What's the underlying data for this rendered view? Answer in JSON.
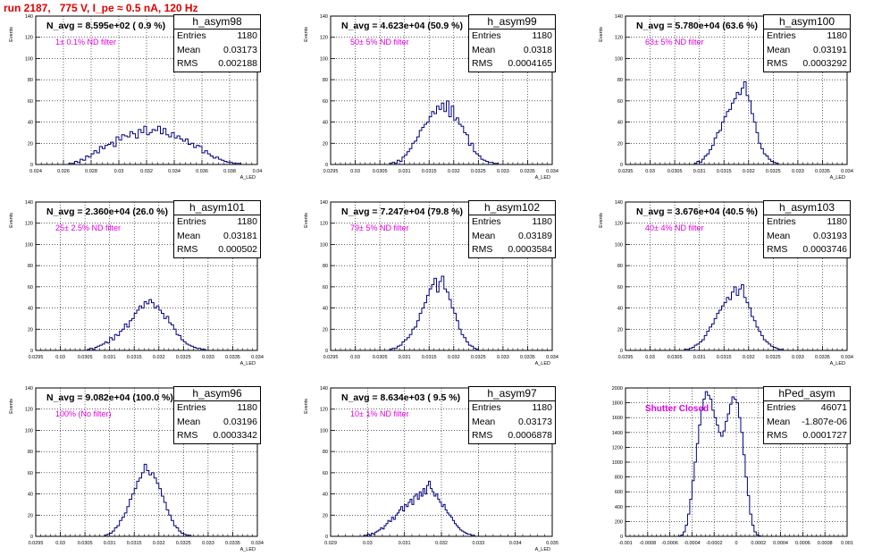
{
  "page": {
    "title": "run 2187,   775 V, I_pe ≈ 0.5 nA, 120 Hz"
  },
  "labels": {
    "entries": "Entries",
    "mean": "Mean",
    "rms": "RMS"
  },
  "chart_data": [
    {
      "type": "bar",
      "id": "h_asym98",
      "title": "h_asym98",
      "navg": "N_avg = 8.595e+02 ( 0.9 %)",
      "annotation": "1± 0.1% ND filter",
      "stats": {
        "entries": "1180",
        "mean": "0.03173",
        "rms": "0.002188"
      },
      "xlabel": "A_LED",
      "ylabel": "Events",
      "xlim": [
        0.024,
        0.04
      ],
      "ylim": [
        0,
        140
      ],
      "xticks": [
        0.024,
        0.026,
        0.028,
        0.03,
        0.032,
        0.034,
        0.036,
        0.038,
        0.04
      ],
      "xtick_labels": [
        "0.024",
        "0.026",
        "0.028",
        "0.03",
        "0.032",
        "0.034",
        "0.036",
        "0.038",
        "0.04"
      ],
      "yticks": [
        0,
        20,
        40,
        60,
        80,
        100,
        120,
        140
      ],
      "ytick_labels": [
        "0",
        "20",
        "40",
        "60",
        "80",
        "100",
        "120",
        "140"
      ],
      "bin_width": 0.0002,
      "bins": {
        "start": 0.0264,
        "counts": [
          1,
          1,
          3,
          2,
          5,
          4,
          8,
          7,
          10,
          13,
          11,
          17,
          15,
          18,
          19,
          21,
          17,
          26,
          23,
          28,
          27,
          26,
          31,
          29,
          25,
          33,
          30,
          36,
          28,
          30,
          33,
          32,
          36,
          29,
          34,
          28,
          26,
          30,
          25,
          27,
          24,
          22,
          24,
          19,
          20,
          16,
          18,
          17,
          11,
          13,
          10,
          8,
          6,
          7,
          5,
          4,
          3,
          2,
          2,
          1,
          1,
          1
        ]
      },
      "grid": true,
      "legend": "top-right"
    },
    {
      "type": "bar",
      "id": "h_asym99",
      "title": "h_asym99",
      "navg": "N_avg = 4.623e+04 (50.9 %)",
      "annotation": "50± 5% ND filter",
      "stats": {
        "entries": "1180",
        "mean": "0.0318",
        "rms": "0.0004165"
      },
      "xlabel": "A_LED",
      "ylabel": "Events",
      "xlim": [
        0.0295,
        0.034
      ],
      "ylim": [
        0,
        140
      ],
      "xticks": [
        0.0295,
        0.03,
        0.0305,
        0.031,
        0.0315,
        0.032,
        0.0325,
        0.033,
        0.0335,
        0.034
      ],
      "xtick_labels": [
        "0.0295",
        "0.03",
        "0.0305",
        "0.031",
        "0.0315",
        "0.032",
        "0.0325",
        "0.033",
        "0.0335",
        "0.034"
      ],
      "yticks": [
        0,
        20,
        40,
        60,
        80,
        100,
        120,
        140
      ],
      "ytick_labels": [
        "0",
        "20",
        "40",
        "60",
        "80",
        "100",
        "120",
        "140"
      ],
      "bin_width": 5e-05,
      "bins": {
        "start": 0.0307,
        "counts": [
          1,
          2,
          1,
          4,
          3,
          7,
          9,
          12,
          15,
          20,
          22,
          26,
          32,
          35,
          38,
          40,
          45,
          50,
          48,
          55,
          52,
          58,
          50,
          60,
          45,
          55,
          42,
          44,
          38,
          36,
          30,
          28,
          18,
          20,
          12,
          10,
          8,
          5,
          4,
          3,
          2,
          2,
          1,
          1
        ]
      },
      "grid": true,
      "legend": "top-right"
    },
    {
      "type": "bar",
      "id": "h_asym100",
      "title": "h_asym100",
      "navg": "N_avg = 5.780e+04 (63.6 %)",
      "annotation": "63± 5% ND filter",
      "stats": {
        "entries": "1180",
        "mean": "0.03191",
        "rms": "0.0003292"
      },
      "xlabel": "A_LED",
      "ylabel": "Events",
      "xlim": [
        0.0295,
        0.034
      ],
      "ylim": [
        0,
        140
      ],
      "xticks": [
        0.0295,
        0.03,
        0.0305,
        0.031,
        0.0315,
        0.032,
        0.0325,
        0.033,
        0.0335,
        0.034
      ],
      "xtick_labels": [
        "0.0295",
        "0.03",
        "0.0305",
        "0.031",
        "0.0315",
        "0.032",
        "0.0325",
        "0.033",
        "0.0335",
        "0.034"
      ],
      "yticks": [
        0,
        20,
        40,
        60,
        80,
        100,
        120,
        140
      ],
      "ytick_labels": [
        "0",
        "20",
        "40",
        "60",
        "80",
        "100",
        "120",
        "140"
      ],
      "bin_width": 5e-05,
      "bins": {
        "start": 0.0309,
        "counts": [
          1,
          3,
          2,
          5,
          8,
          10,
          14,
          18,
          25,
          30,
          32,
          40,
          45,
          50,
          52,
          58,
          62,
          68,
          66,
          72,
          78,
          65,
          60,
          48,
          40,
          30,
          20,
          15,
          10,
          8,
          5,
          3,
          2,
          1
        ]
      },
      "grid": true,
      "legend": "top-right"
    },
    {
      "type": "bar",
      "id": "h_asym101",
      "title": "h_asym101",
      "navg": "N_avg = 2.360e+04 (26.0 %)",
      "annotation": "25± 2.5% ND filter",
      "stats": {
        "entries": "1180",
        "mean": "0.03181",
        "rms": "0.000502"
      },
      "xlabel": "A_LED",
      "ylabel": "Events",
      "xlim": [
        0.0295,
        0.034
      ],
      "ylim": [
        0,
        140
      ],
      "xticks": [
        0.0295,
        0.03,
        0.0305,
        0.031,
        0.0315,
        0.032,
        0.0325,
        0.033,
        0.0335,
        0.034
      ],
      "xtick_labels": [
        "0.0295",
        "0.03",
        "0.0305",
        "0.031",
        "0.0315",
        "0.032",
        "0.0325",
        "0.033",
        "0.0335",
        "0.034"
      ],
      "yticks": [
        0,
        20,
        40,
        60,
        80,
        100,
        120,
        140
      ],
      "ytick_labels": [
        "0",
        "20",
        "40",
        "60",
        "80",
        "100",
        "120",
        "140"
      ],
      "bin_width": 5e-05,
      "bins": {
        "start": 0.03055,
        "counts": [
          1,
          2,
          1,
          3,
          4,
          5,
          6,
          8,
          7,
          12,
          10,
          15,
          14,
          18,
          20,
          25,
          22,
          28,
          30,
          35,
          38,
          42,
          40,
          46,
          44,
          48,
          45,
          40,
          42,
          38,
          35,
          30,
          32,
          26,
          24,
          20,
          15,
          14,
          10,
          8,
          6,
          5,
          4,
          3,
          2,
          2,
          1,
          1
        ]
      },
      "grid": true,
      "legend": "top-right"
    },
    {
      "type": "bar",
      "id": "h_asym102",
      "title": "h_asym102",
      "navg": "N_avg = 7.247e+04 (79.8 %)",
      "annotation": "79± 5% ND filter",
      "stats": {
        "entries": "1180",
        "mean": "0.03189",
        "rms": "0.0003584"
      },
      "xlabel": "A_LED",
      "ylabel": "Events",
      "xlim": [
        0.0295,
        0.034
      ],
      "ylim": [
        0,
        140
      ],
      "xticks": [
        0.0295,
        0.03,
        0.0305,
        0.031,
        0.0315,
        0.032,
        0.0325,
        0.033,
        0.0335,
        0.034
      ],
      "xtick_labels": [
        "0.0295",
        "0.03",
        "0.0305",
        "0.031",
        "0.0315",
        "0.032",
        "0.0325",
        "0.033",
        "0.0335",
        "0.034"
      ],
      "yticks": [
        0,
        20,
        40,
        60,
        80,
        100,
        120,
        140
      ],
      "ytick_labels": [
        "0",
        "20",
        "40",
        "60",
        "80",
        "100",
        "120",
        "140"
      ],
      "bin_width": 5e-05,
      "bins": {
        "start": 0.0307,
        "counts": [
          1,
          2,
          2,
          4,
          5,
          8,
          10,
          12,
          15,
          20,
          22,
          28,
          35,
          40,
          45,
          52,
          58,
          62,
          68,
          55,
          65,
          70,
          58,
          55,
          48,
          40,
          35,
          28,
          20,
          15,
          12,
          8,
          5,
          4,
          2,
          1
        ]
      },
      "grid": true,
      "legend": "top-right"
    },
    {
      "type": "bar",
      "id": "h_asym103",
      "title": "h_asym103",
      "navg": "N_avg = 3.676e+04 (40.5 %)",
      "annotation": "40± 4% ND filter",
      "stats": {
        "entries": "1180",
        "mean": "0.03193",
        "rms": "0.0003746"
      },
      "xlabel": "A_LED",
      "ylabel": "Events",
      "xlim": [
        0.0295,
        0.034
      ],
      "ylim": [
        0,
        140
      ],
      "xticks": [
        0.0295,
        0.03,
        0.0305,
        0.031,
        0.0315,
        0.032,
        0.0325,
        0.033,
        0.0335,
        0.034
      ],
      "xtick_labels": [
        "0.0295",
        "0.03",
        "0.0305",
        "0.031",
        "0.0315",
        "0.032",
        "0.0325",
        "0.033",
        "0.0335",
        "0.034"
      ],
      "yticks": [
        0,
        20,
        40,
        60,
        80,
        100,
        120,
        140
      ],
      "ytick_labels": [
        "0",
        "20",
        "40",
        "60",
        "80",
        "100",
        "120",
        "140"
      ],
      "bin_width": 5e-05,
      "bins": {
        "start": 0.0307,
        "counts": [
          1,
          1,
          2,
          3,
          5,
          6,
          8,
          10,
          14,
          18,
          22,
          25,
          30,
          35,
          38,
          42,
          45,
          50,
          48,
          55,
          60,
          52,
          58,
          62,
          50,
          45,
          40,
          32,
          28,
          22,
          18,
          14,
          10,
          8,
          6,
          4,
          3,
          2,
          1,
          1
        ]
      },
      "grid": true,
      "legend": "top-right"
    },
    {
      "type": "bar",
      "id": "h_asym96",
      "title": "h_asym96",
      "navg": "N_avg = 9.082e+04 (100.0 %)",
      "annotation": "100% (No filter)",
      "stats": {
        "entries": "1180",
        "mean": "0.03196",
        "rms": "0.0003342"
      },
      "xlabel": "A_LED",
      "ylabel": "Events",
      "xlim": [
        0.0295,
        0.034
      ],
      "ylim": [
        0,
        140
      ],
      "xticks": [
        0.0295,
        0.03,
        0.0305,
        0.031,
        0.0315,
        0.032,
        0.0325,
        0.033,
        0.0335,
        0.034
      ],
      "xtick_labels": [
        "0.0295",
        "0.03",
        "0.0305",
        "0.031",
        "0.0315",
        "0.032",
        "0.0325",
        "0.033",
        "0.0335",
        "0.034"
      ],
      "yticks": [
        0,
        20,
        40,
        60,
        80,
        100,
        120,
        140
      ],
      "ytick_labels": [
        "0",
        "20",
        "40",
        "60",
        "80",
        "100",
        "120",
        "140"
      ],
      "bin_width": 5e-05,
      "bins": {
        "start": 0.0309,
        "counts": [
          1,
          2,
          3,
          5,
          8,
          10,
          15,
          18,
          22,
          28,
          35,
          40,
          45,
          52,
          55,
          60,
          68,
          62,
          58,
          60,
          55,
          50,
          45,
          38,
          32,
          25,
          20,
          15,
          10,
          8,
          5,
          3,
          2,
          1,
          1
        ]
      },
      "grid": true,
      "legend": "top-right"
    },
    {
      "type": "bar",
      "id": "h_asym97",
      "title": "h_asym97",
      "navg": "N_avg = 8.634e+03 ( 9.5 %)",
      "annotation": "10± 1% ND filter",
      "stats": {
        "entries": "1180",
        "mean": "0.03173",
        "rms": "0.0006878"
      },
      "xlabel": "A_LED",
      "ylabel": "Events",
      "xlim": [
        0.029,
        0.035
      ],
      "ylim": [
        0,
        140
      ],
      "xticks": [
        0.029,
        0.03,
        0.031,
        0.032,
        0.033,
        0.034,
        0.035
      ],
      "xtick_labels": [
        "0.029",
        "0.03",
        "0.031",
        "0.032",
        "0.033",
        "0.034",
        "0.035"
      ],
      "yticks": [
        0,
        20,
        40,
        60,
        80,
        100,
        120,
        140
      ],
      "ytick_labels": [
        "0",
        "20",
        "40",
        "60",
        "80",
        "100",
        "120",
        "140"
      ],
      "bin_width": 5e-05,
      "bins": {
        "start": 0.0299,
        "counts": [
          1,
          1,
          2,
          1,
          3,
          2,
          4,
          5,
          6,
          8,
          7,
          10,
          12,
          15,
          14,
          18,
          16,
          20,
          22,
          25,
          28,
          24,
          30,
          28,
          32,
          35,
          30,
          38,
          40,
          35,
          42,
          38,
          45,
          40,
          48,
          52,
          45,
          42,
          38,
          40,
          35,
          32,
          28,
          30,
          25,
          22,
          20,
          18,
          15,
          12,
          10,
          8,
          6,
          5,
          4,
          3,
          2,
          2,
          1,
          1
        ]
      },
      "grid": true,
      "legend": "top-right"
    },
    {
      "type": "bar",
      "id": "hPed_asym",
      "title": "hPed_asym",
      "navg": "",
      "annotation": "Shutter Closed",
      "stats": {
        "entries": "46071",
        "mean": "-1.807e-06",
        "rms": "0.0001727"
      },
      "xlabel": "",
      "ylabel": "",
      "xlim": [
        -0.001,
        0.001
      ],
      "ylim": [
        0,
        2000
      ],
      "xticks": [
        -0.001,
        -0.0008,
        -0.0006,
        -0.0004,
        -0.0002,
        0,
        0.0002,
        0.0004,
        0.0006,
        0.0008,
        0.001
      ],
      "xtick_labels": [
        "-0.001",
        "-0.0008",
        "-0.0006",
        "-0.0004",
        "-0.0002",
        "0",
        "0.0002",
        "0.0004",
        "0.0006",
        "0.0008",
        "0.001"
      ],
      "yticks": [
        0,
        200,
        400,
        600,
        800,
        1000,
        1200,
        1400,
        1600,
        1800,
        2000
      ],
      "ytick_labels": [
        "0",
        "200",
        "400",
        "600",
        "800",
        "1000",
        "1200",
        "1400",
        "1600",
        "1800",
        "2000"
      ],
      "bin_width": 2e-05,
      "bins": {
        "start": -0.00052,
        "counts": [
          5,
          20,
          60,
          150,
          300,
          500,
          750,
          1000,
          1250,
          1500,
          1700,
          1850,
          1950,
          1900,
          1850,
          1700,
          1600,
          1500,
          1400,
          1350,
          1420,
          1550,
          1650,
          1780,
          1880,
          1850,
          1800,
          1600,
          1400,
          1100,
          800,
          550,
          300,
          150,
          60,
          20,
          8
        ]
      },
      "grid": true,
      "legend": "top-right"
    }
  ]
}
